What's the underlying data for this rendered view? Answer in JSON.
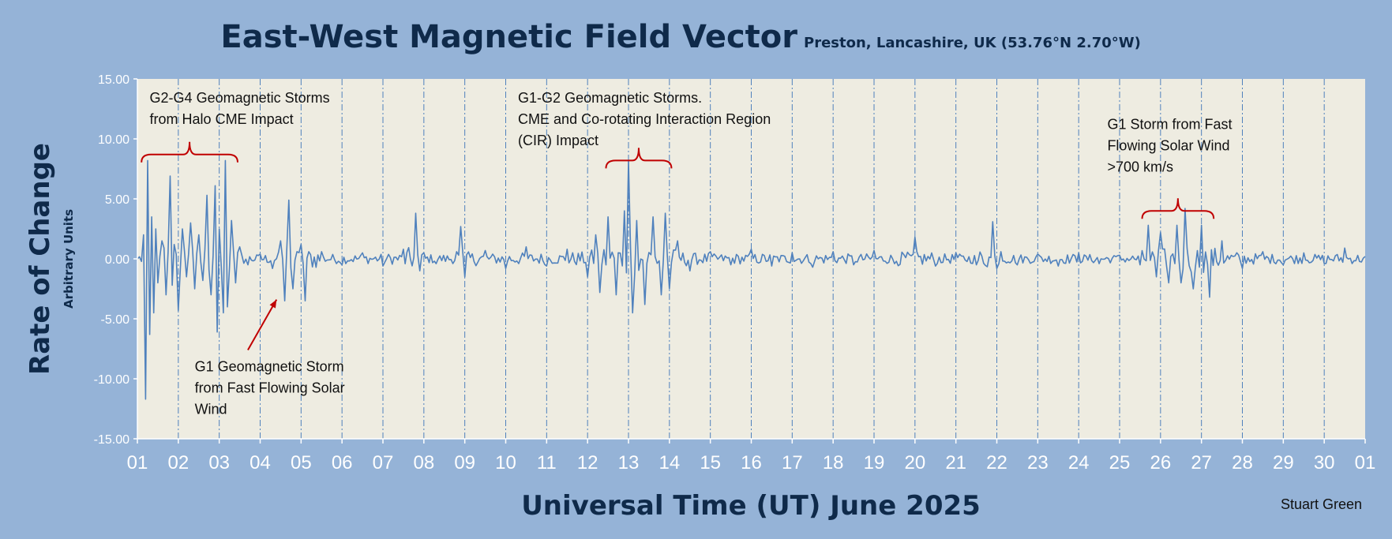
{
  "chart_data": {
    "type": "line",
    "title": "East-West Magnetic Field Vector",
    "subtitle": "Preston, Lancashire, UK  (53.76°N 2.70°W)",
    "ylabel": "Rate of Change",
    "ylabel_units": "Arbitrary Units",
    "xlabel": "Universal Time (UT) June 2025",
    "credit": "Stuart Green",
    "ylim": [
      -15,
      15
    ],
    "y_ticks": [
      "15.00",
      "10.00",
      "5.00",
      "0.00",
      "-5.00",
      "-10.00",
      "-15.00"
    ],
    "x_ticks": [
      "01",
      "02",
      "03",
      "04",
      "05",
      "06",
      "07",
      "08",
      "09",
      "10",
      "11",
      "12",
      "13",
      "14",
      "15",
      "16",
      "17",
      "18",
      "19",
      "20",
      "21",
      "22",
      "23",
      "24",
      "25",
      "26",
      "27",
      "28",
      "29",
      "30",
      "01"
    ],
    "grid": "vertical dashed lines at day boundaries",
    "series": [
      {
        "color": "#4f81bd",
        "x": [
          1.0,
          1.15,
          1.2,
          1.25,
          1.3,
          1.35,
          1.4,
          1.45,
          1.5,
          1.6,
          1.7,
          1.8,
          1.85,
          1.9,
          2.0,
          2.1,
          2.2,
          2.3,
          2.4,
          2.5,
          2.6,
          2.7,
          2.8,
          2.9,
          2.95,
          3.0,
          3.1,
          3.15,
          3.2,
          3.3,
          3.4,
          3.5,
          3.7,
          4.0,
          4.3,
          4.5,
          4.6,
          4.7,
          4.8,
          5.0,
          5.1,
          5.5,
          6.0,
          6.5,
          7.0,
          7.5,
          7.8,
          7.9,
          8.0,
          8.3,
          8.8,
          8.9,
          9.0,
          9.5,
          10.0,
          10.5,
          11.0,
          11.5,
          12.0,
          12.2,
          12.3,
          12.5,
          12.7,
          12.9,
          13.0,
          13.1,
          13.2,
          13.4,
          13.6,
          13.8,
          13.9,
          14.0,
          14.2,
          14.5,
          15.0,
          15.5,
          16.0,
          16.5,
          17.0,
          17.5,
          18.0,
          18.5,
          19.0,
          19.5,
          20.0,
          20.5,
          21.0,
          21.5,
          21.9,
          22.0,
          22.1,
          22.5,
          23.0,
          23.5,
          24.0,
          24.5,
          25.0,
          25.5,
          25.7,
          25.9,
          26.0,
          26.2,
          26.4,
          26.5,
          26.6,
          26.8,
          27.0,
          27.2,
          27.5,
          28.0,
          28.5,
          29.0,
          29.5,
          30.0,
          30.5,
          31.0
        ],
        "y": [
          0,
          2.0,
          -11.7,
          8.2,
          -6.3,
          3.5,
          -4.5,
          2.5,
          -2.0,
          1.5,
          -3.0,
          6.9,
          -2.2,
          1.2,
          -4.3,
          2.5,
          -1.5,
          3.0,
          -2.5,
          2.0,
          -1.8,
          5.3,
          -3.0,
          6.1,
          -6.1,
          2.5,
          -4.5,
          8.2,
          -4.0,
          3.2,
          -2.0,
          1.0,
          -0.5,
          0.4,
          -0.8,
          1.5,
          -3.5,
          4.9,
          -2.5,
          1.2,
          -3.5,
          0.6,
          -0.5,
          0.5,
          -0.6,
          0.8,
          3.8,
          -1.0,
          0.5,
          -0.4,
          0.6,
          2.7,
          -1.5,
          0.7,
          -0.8,
          1.0,
          -0.6,
          0.8,
          -1.5,
          2.0,
          -2.8,
          3.5,
          -3.0,
          4.0,
          8.2,
          -4.5,
          3.2,
          -3.8,
          3.5,
          -3.0,
          3.8,
          -2.5,
          1.5,
          -1.0,
          0.6,
          -0.5,
          0.8,
          -0.6,
          0.5,
          -0.7,
          0.6,
          -0.5,
          0.7,
          -0.4,
          1.8,
          -0.6,
          0.5,
          -0.5,
          3.1,
          -0.8,
          0.6,
          -0.5,
          0.4,
          -0.6,
          0.5,
          -0.4,
          0.3,
          -0.5,
          2.8,
          -1.5,
          2.2,
          -2.0,
          2.8,
          -2.0,
          4.2,
          -2.5,
          2.8,
          -3.2,
          1.5,
          -0.8,
          0.6,
          -0.5,
          0.5,
          -0.4,
          0.9,
          0.2
        ]
      }
    ],
    "annotations": [
      {
        "lines": [
          "G2-G4 Geomagnetic Storms",
          "from Halo CME Impact"
        ],
        "x": 1.3,
        "y": 13.8,
        "brace": [
          1.1,
          3.45,
          8.7
        ]
      },
      {
        "lines": [
          "G1-G2 Geomagnetic Storms.",
          "CME and Co-rotating Interaction Region",
          "(CIR) Impact"
        ],
        "x": 10.3,
        "y": 13.8,
        "brace": [
          12.45,
          14.05,
          8.2
        ]
      },
      {
        "lines": [
          "G1 Storm from Fast",
          "Flowing Solar Wind",
          ">700 km/s"
        ],
        "x": 24.7,
        "y": 11.6,
        "brace": [
          25.55,
          27.3,
          4.0
        ]
      },
      {
        "lines": [
          "G1 Geomagnetic Storm",
          "from Fast Flowing Solar",
          "Wind"
        ],
        "x": 2.4,
        "y": -8.6,
        "arrow": {
          "from": [
            3.7,
            -7.6
          ],
          "to": [
            4.4,
            -3.4
          ]
        }
      }
    ]
  }
}
